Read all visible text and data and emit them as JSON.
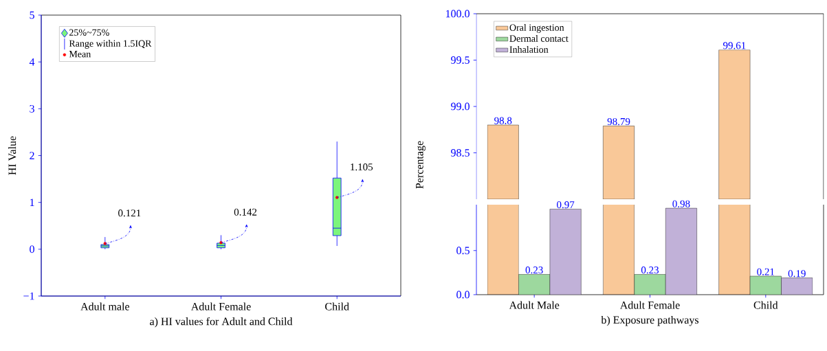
{
  "chart_data": [
    {
      "type": "box",
      "xlabel": "a) HI values for Adult and Child",
      "ylabel": "HI Value",
      "categories": [
        "Adult male",
        "Adult Female",
        "Child"
      ],
      "series": [
        {
          "name": "25%~75%",
          "color": "#7cf57c",
          "boxes": [
            {
              "low": 0,
              "q1": 0.03,
              "median": 0.07,
              "q3": 0.1,
              "high": 0.26
            },
            {
              "low": 0,
              "q1": 0.03,
              "median": 0.08,
              "q3": 0.13,
              "high": 0.3
            },
            {
              "low": 0.07,
              "q1": 0.29,
              "median": 0.45,
              "q3": 1.52,
              "high": 2.3
            }
          ]
        },
        {
          "type": "scatter",
          "name": "Mean",
          "color": "#ff0000",
          "x": [
            "Adult male",
            "Adult Female",
            "Child"
          ],
          "values": [
            0.121,
            0.142,
            1.105
          ],
          "value_labels": [
            "0.121",
            "0.142",
            "1.105"
          ]
        }
      ],
      "annotations": [
        "Range within 1.5IQR"
      ],
      "ylim": [
        -1,
        5
      ],
      "yticks": [
        {
          "value": -1,
          "label": "−1"
        },
        0,
        1,
        2,
        3,
        4,
        5
      ],
      "legend": "top left"
    },
    {
      "type": "bar",
      "ylabel": "Percentage",
      "series": [
        {
          "name": "Oral ingestion",
          "color": "#f9c898",
          "values": [
            98.8,
            98.79,
            99.61
          ],
          "value_labels": [
            "98.8",
            "98.79",
            "99.61"
          ]
        },
        {
          "name": "Dermal contact",
          "color": "#9dd89e",
          "values": [
            null,
            null,
            null
          ]
        },
        {
          "name": "Inhalation",
          "color": "#c1b1d8",
          "values": [
            null,
            null,
            null
          ]
        }
      ],
      "ylim": [
        98,
        100
      ],
      "yticks": [
        {
          "value": 98.5,
          "label": "98.5"
        },
        {
          "value": 99,
          "label": "99.0"
        },
        {
          "value": 99.5,
          "label": "99.5"
        },
        {
          "value": 100,
          "label": "100.0"
        }
      ],
      "tick_labels": "y",
      "legend": "top left"
    },
    {
      "type": "bar",
      "xlabel": "b) Exposure pathways",
      "categories": [
        "Adult Male",
        "Adult Female",
        "Child"
      ],
      "series": [
        {
          "values": [
            null,
            null,
            null
          ]
        },
        {
          "color": "#9dd89e",
          "values": [
            0.23,
            0.23,
            0.21
          ],
          "value_labels": [
            "0.23",
            "0.23",
            "0.21"
          ]
        },
        {
          "color": "#c1b1d8",
          "values": [
            0.97,
            0.98,
            0.19
          ],
          "value_labels": [
            "0.97",
            "0.98",
            "0.19"
          ]
        }
      ],
      "ylim": [
        0,
        1.02
      ],
      "yticks": [
        {
          "value": 0,
          "label": "0.0"
        },
        0.5
      ]
    }
  ]
}
